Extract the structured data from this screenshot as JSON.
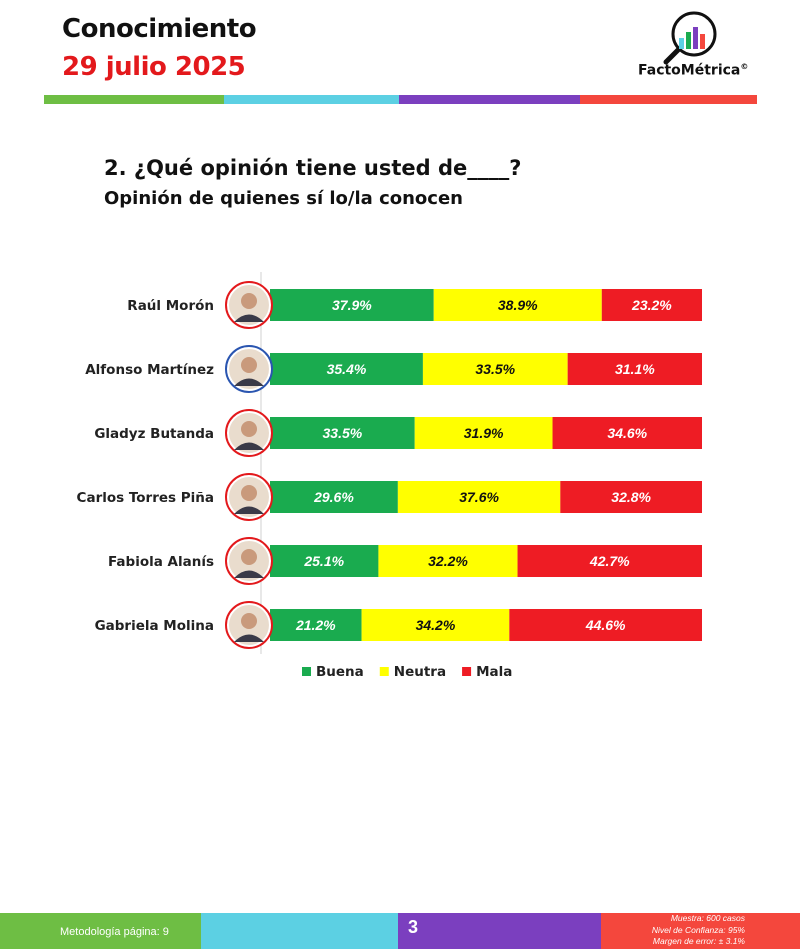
{
  "header": {
    "title": "Conocimiento",
    "date": "29 julio 2025",
    "brand": "FactoMétrica",
    "brand_mark": "©"
  },
  "colors": {
    "green": "#1aab4f",
    "yellow": "#ffff00",
    "red": "#ee1c24",
    "cyan": "#5cd0e3",
    "purple": "#7b3fbf",
    "coral": "#f4473d"
  },
  "question": "2. ¿Qué opinión tiene usted de____?",
  "subtitle": "Opinión de quienes sí lo/la conocen",
  "chart_data": {
    "type": "bar",
    "orientation": "horizontal",
    "stacked": true,
    "categories": [
      "Raúl Morón",
      "Alfonso Martínez",
      "Gladyz Butanda",
      "Carlos Torres Piña",
      "Fabiola Alanís",
      "Gabriela Molina"
    ],
    "series": [
      {
        "name": "Buena",
        "color": "#1aab4f",
        "values": [
          37.9,
          35.4,
          33.5,
          29.6,
          25.1,
          21.2
        ],
        "labels": [
          "37.9%",
          "35.4%",
          "33.5%",
          "29.6%",
          "25.1%",
          "21.2%"
        ]
      },
      {
        "name": "Neutra",
        "color": "#ffff00",
        "values": [
          38.9,
          33.5,
          31.9,
          37.6,
          32.2,
          34.2
        ],
        "labels": [
          "38.9%",
          "33.5%",
          "31.9%",
          "37.6%",
          "32.2%",
          "34.2%"
        ]
      },
      {
        "name": "Mala",
        "color": "#ee1c24",
        "values": [
          23.2,
          31.1,
          34.6,
          32.8,
          42.7,
          44.6
        ],
        "labels": [
          "23.2%",
          "31.1%",
          "34.6%",
          "32.8%",
          "42.7%",
          "44.6%"
        ]
      }
    ],
    "legend_position": "bottom",
    "photo_ring_colors": [
      "#e3191c",
      "#2a55b0",
      "#e3191c",
      "#e3191c",
      "#e3191c",
      "#e3191c"
    ]
  },
  "footer": {
    "methodology": "Metodología página: 9",
    "page_number": "3",
    "notes": [
      "Muestra: 600 casos",
      "Nivel de Confianza: 95%",
      "Margen de error: ± 3.1%"
    ]
  }
}
